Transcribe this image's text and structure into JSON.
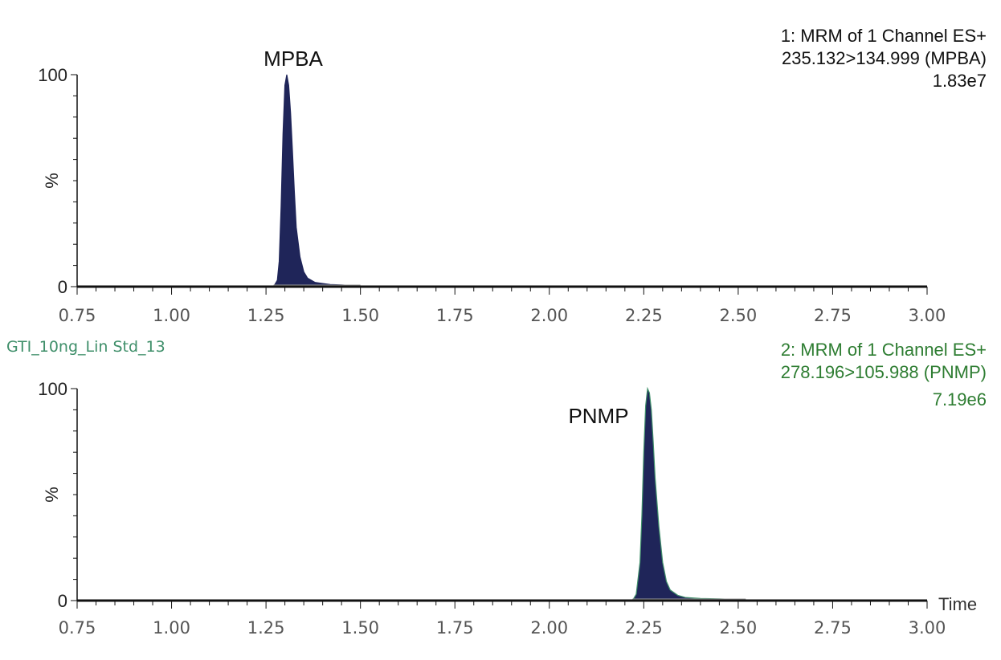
{
  "sample_name": "GTI_10ng_Lin Std_13",
  "x_axis_title": "Time",
  "colors": {
    "peak_fill": "#1f2559",
    "axis": "#111111",
    "info_panel_1": "#111111",
    "info_panel_2": "#2e7d32",
    "trace_2_line": "#3f8f6a"
  },
  "chart_data": [
    {
      "type": "area",
      "xlim": [
        0.75,
        3.0
      ],
      "ylim": [
        0,
        100
      ],
      "x_ticks": [
        "0.75",
        "1.00",
        "1.25",
        "1.50",
        "1.75",
        "2.00",
        "2.25",
        "2.50",
        "2.75",
        "3.00"
      ],
      "y_ticks": [
        "0",
        "100"
      ],
      "ylabel": "%",
      "info_lines": [
        "1: MRM of 1 Channel ES+",
        "235.132>134.999 (MPBA)",
        "1.83e7"
      ],
      "peak_label": "MPBA",
      "peak_apex_x": 1.3,
      "x": [
        0.75,
        1.27,
        1.28,
        1.285,
        1.29,
        1.295,
        1.3,
        1.305,
        1.31,
        1.315,
        1.32,
        1.325,
        1.33,
        1.34,
        1.35,
        1.36,
        1.38,
        1.4,
        1.42,
        1.45,
        1.48,
        1.5,
        3.0
      ],
      "y": [
        0,
        0,
        3,
        12,
        38,
        72,
        95,
        100,
        95,
        82,
        64,
        45,
        28,
        14,
        7,
        4,
        2,
        1.5,
        1,
        0.8,
        0.5,
        0,
        0
      ]
    },
    {
      "type": "area",
      "xlim": [
        0.75,
        3.0
      ],
      "ylim": [
        0,
        100
      ],
      "x_ticks": [
        "0.75",
        "1.00",
        "1.25",
        "1.50",
        "1.75",
        "2.00",
        "2.25",
        "2.50",
        "2.75",
        "3.00"
      ],
      "y_ticks": [
        "0",
        "100"
      ],
      "ylabel": "%",
      "info_lines": [
        "2: MRM of 1 Channel ES+",
        "278.196>105.988 (PNMP)",
        "7.19e6"
      ],
      "peak_label": "PNMP",
      "peak_apex_x": 2.265,
      "x": [
        0.75,
        2.22,
        2.23,
        2.24,
        2.245,
        2.25,
        2.255,
        2.26,
        2.265,
        2.27,
        2.275,
        2.28,
        2.29,
        2.3,
        2.31,
        2.32,
        2.34,
        2.36,
        2.4,
        2.45,
        2.5,
        2.52,
        3.0
      ],
      "y": [
        0,
        0,
        3,
        18,
        40,
        70,
        92,
        100,
        98,
        90,
        75,
        58,
        35,
        18,
        9,
        5,
        2.5,
        1.5,
        1,
        0.8,
        0.5,
        0,
        0
      ]
    }
  ]
}
